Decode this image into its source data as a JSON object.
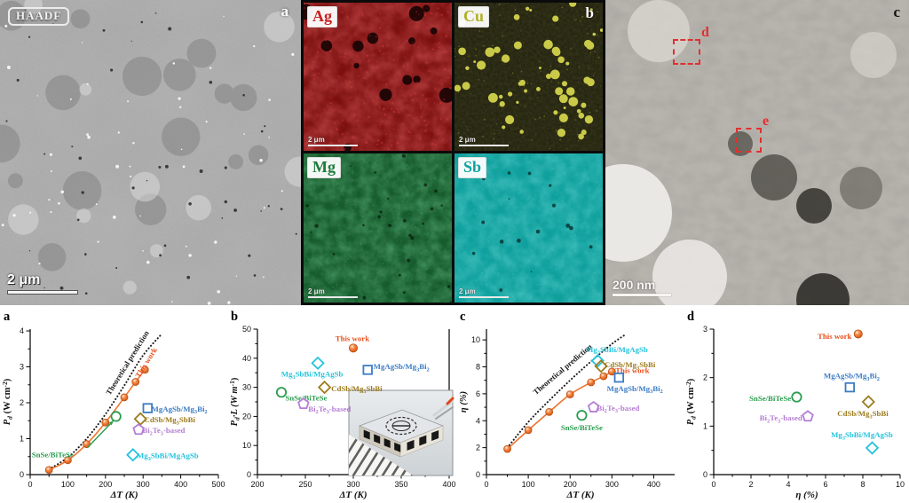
{
  "micrographs": {
    "haadf": {
      "technique_label": "HAADF",
      "panel_letter": "a",
      "scale_bar": "2 μm"
    },
    "eds_maps": [
      {
        "element": "Ag",
        "color": "#c42222",
        "scale_bar": "2 μm"
      },
      {
        "element": "Cu",
        "color": "#b0b02a",
        "scale_bar": "2 μm",
        "panel_letter": "b"
      },
      {
        "element": "Mg",
        "color": "#1e7c3e",
        "scale_bar": "2 μm"
      },
      {
        "element": "Sb",
        "color": "#12a3a0",
        "scale_bar": "2 μm"
      }
    ],
    "tem": {
      "panel_letter": "c",
      "scale_bar": "200 nm",
      "roi_boxes": [
        {
          "label": "d"
        },
        {
          "label": "e"
        }
      ]
    }
  },
  "chart_data": [
    {
      "panel_letter": "a",
      "type": "line",
      "xlabel": "ΔT (K)",
      "ylabel": "P_d (W cm^-2)",
      "xlim": [
        0,
        500
      ],
      "ylim": [
        0,
        4.05
      ],
      "xticks": [
        0,
        100,
        200,
        300,
        400,
        500
      ],
      "yticks": [
        0,
        1,
        2,
        3,
        4
      ],
      "series": [
        {
          "name": "Theoretical prediction",
          "color": "#1a1a1a",
          "style": "dotted",
          "x": [
            50,
            100,
            150,
            200,
            250,
            300,
            350
          ],
          "y": [
            0.15,
            0.48,
            1.0,
            1.68,
            2.48,
            3.32,
            3.92
          ],
          "label": {
            "x": 212,
            "y": 2.2,
            "rotate": -58,
            "anchor": "start"
          }
        },
        {
          "name": "This work",
          "color": "#f0742f",
          "text_color": "#e84f1d",
          "style": "line-markers",
          "x": [
            50,
            100,
            150,
            200,
            250,
            280,
            305
          ],
          "y": [
            0.13,
            0.4,
            0.85,
            1.45,
            2.15,
            2.58,
            2.92
          ],
          "label": {
            "x": 290,
            "y": 2.68,
            "rotate": -58,
            "anchor": "start"
          }
        }
      ],
      "points": [
        {
          "name": "MgAgSb/Mg_3Bi_2",
          "marker": "square",
          "color": "#3b7cc4",
          "x": 312,
          "y": 1.85,
          "label": {
            "x": 322,
            "y": 1.83,
            "anchor": "start"
          }
        },
        {
          "name": "CdSb/Mg_3SbBi",
          "marker": "diamond",
          "color": "#9c7b1d",
          "x": 293,
          "y": 1.55,
          "label": {
            "x": 303,
            "y": 1.53,
            "anchor": "start"
          }
        },
        {
          "name": "Bi_2Te_3-based",
          "marker": "pentagon",
          "color": "#b57dd5",
          "x": 288,
          "y": 1.25,
          "label": {
            "x": 298,
            "y": 1.23,
            "anchor": "start"
          }
        },
        {
          "name": "SnSe/BiTeSe",
          "marker": "circle",
          "color": "#2a9d4e",
          "x": 228,
          "y": 1.62,
          "label": {
            "x": 4,
            "y": 0.56,
            "anchor": "start"
          }
        },
        {
          "name": "Mg_3SbBi/MgAgSb",
          "marker": "diamond",
          "color": "#25c3dc",
          "x": 273,
          "y": 0.55,
          "label": {
            "x": 283,
            "y": 0.53,
            "anchor": "start"
          }
        }
      ],
      "arrows": [
        {
          "x1": 152,
          "y1": 0.75,
          "x2": 221,
          "y2": 1.5,
          "color": "#2a9d4e"
        }
      ]
    },
    {
      "panel_letter": "b",
      "type": "scatter",
      "xlabel": "ΔT (K)",
      "ylabel": "P_d·L (W m^-1)",
      "xlim": [
        200,
        400
      ],
      "ylim": [
        0,
        50
      ],
      "xticks": [
        200,
        250,
        300,
        350,
        400
      ],
      "yticks": [
        0,
        10,
        20,
        30,
        40,
        50
      ],
      "right_spine": true,
      "inset_photo": "thermoelectric-module-photo",
      "points": [
        {
          "name": "This work",
          "marker": "ball",
          "color": "#f0742f",
          "text_color": "#e84f1d",
          "x": 300,
          "y": 43.5,
          "label": {
            "x": 299,
            "y": 46.8,
            "anchor": "middle"
          }
        },
        {
          "name": "Mg_3SbBi/MgAgSb",
          "marker": "diamond",
          "color": "#25c3dc",
          "x": 263,
          "y": 38.3,
          "label": {
            "x": 257,
            "y": 34.6,
            "anchor": "middle"
          }
        },
        {
          "name": "MgAgSb/Mg_3Bi_2",
          "marker": "square",
          "color": "#3b7cc4",
          "x": 315,
          "y": 36,
          "label": {
            "x": 321,
            "y": 37.2,
            "anchor": "start"
          }
        },
        {
          "name": "CdSb/Mg_3SbBi",
          "marker": "diamond",
          "color": "#9c7b1d",
          "x": 270,
          "y": 30,
          "label": {
            "x": 277,
            "y": 29.6,
            "anchor": "start"
          }
        },
        {
          "name": "SnSe/BiTeSe",
          "marker": "circle",
          "color": "#2a9d4e",
          "x": 225,
          "y": 28.3,
          "label": {
            "x": 229,
            "y": 26.4,
            "anchor": "start"
          }
        },
        {
          "name": "Bi_2Te_3-based",
          "marker": "pentagon",
          "color": "#b57dd5",
          "x": 248,
          "y": 24.3,
          "label": {
            "x": 253,
            "y": 22.6,
            "anchor": "start"
          }
        }
      ]
    },
    {
      "panel_letter": "c",
      "type": "line",
      "xlabel": "ΔT (K)",
      "ylabel": "η (%)",
      "xlim": [
        0,
        450
      ],
      "ylim": [
        0,
        10.8
      ],
      "xticks": [
        0,
        100,
        200,
        300,
        400
      ],
      "yticks": [
        0,
        2,
        4,
        6,
        8,
        10
      ],
      "series": [
        {
          "name": "Theoretical prediction",
          "color": "#1a1a1a",
          "style": "dotted",
          "x": [
            50,
            100,
            150,
            200,
            250,
            300,
            330
          ],
          "y": [
            2.0,
            3.9,
            5.5,
            7.0,
            8.4,
            9.7,
            10.35
          ],
          "label": {
            "x": 118,
            "y": 5.9,
            "rotate": -40,
            "anchor": "start"
          }
        },
        {
          "name": "This work",
          "color": "#f0742f",
          "text_color": "#e84f1d",
          "style": "line-markers",
          "x": [
            50,
            100,
            150,
            200,
            250,
            280,
            300
          ],
          "y": [
            1.9,
            3.3,
            4.65,
            5.95,
            6.85,
            7.3,
            7.65
          ],
          "label": {
            "x": 308,
            "y": 7.55,
            "rotate": 0,
            "anchor": "start"
          }
        }
      ],
      "points": [
        {
          "name": "Mg_3SbBi/MgAgSb",
          "marker": "diamond",
          "color": "#25c3dc",
          "x": 266,
          "y": 8.45,
          "label": {
            "x": 238,
            "y": 9.3,
            "anchor": "start"
          }
        },
        {
          "name": "CdSb/Mg_3SbBi",
          "marker": "diamond",
          "color": "#9c7b1d",
          "x": 274,
          "y": 8.05,
          "label": {
            "x": 282,
            "y": 8.15,
            "anchor": "start"
          }
        },
        {
          "name": "MgAgSb/Mg_3Bi_2",
          "marker": "square",
          "color": "#3b7cc4",
          "x": 317,
          "y": 7.2,
          "label": {
            "x": 288,
            "y": 6.4,
            "anchor": "start"
          }
        },
        {
          "name": "Bi_2Te_3-based",
          "marker": "pentagon",
          "color": "#b57dd5",
          "x": 256,
          "y": 5.0,
          "label": {
            "x": 264,
            "y": 4.95,
            "anchor": "start"
          }
        },
        {
          "name": "SnSe/BiTeSe",
          "marker": "circle",
          "color": "#2a9d4e",
          "x": 228,
          "y": 4.4,
          "label": {
            "x": 228,
            "y": 3.5,
            "anchor": "middle"
          }
        }
      ]
    },
    {
      "panel_letter": "d",
      "type": "scatter",
      "xlabel": "η (%)",
      "ylabel": "P_d (W cm^-2)",
      "xlim": [
        0,
        10
      ],
      "ylim": [
        0,
        3
      ],
      "xticks": [
        0,
        2,
        4,
        6,
        8,
        10
      ],
      "yticks": [
        0,
        1,
        2,
        3
      ],
      "points": [
        {
          "name": "This work",
          "marker": "ball",
          "color": "#f0742f",
          "text_color": "#e84f1d",
          "x": 7.75,
          "y": 2.9,
          "label": {
            "x": 7.4,
            "y": 2.85,
            "anchor": "end"
          }
        },
        {
          "name": "MgAgSb/Mg_3Bi_2",
          "marker": "square",
          "color": "#3b7cc4",
          "x": 7.3,
          "y": 1.8,
          "label": {
            "x": 5.9,
            "y": 2.04,
            "anchor": "start"
          }
        },
        {
          "name": "CdSb/Mg_3SbBi",
          "marker": "diamond",
          "color": "#9c7b1d",
          "x": 8.3,
          "y": 1.5,
          "label": {
            "x": 8.0,
            "y": 1.26,
            "anchor": "middle"
          }
        },
        {
          "name": "SnSe/BiTeSe",
          "marker": "circle",
          "color": "#2a9d4e",
          "x": 4.45,
          "y": 1.6,
          "label": {
            "x": 4.15,
            "y": 1.57,
            "anchor": "end"
          }
        },
        {
          "name": "Bi_2Te_3-based",
          "marker": "pentagon",
          "color": "#b57dd5",
          "x": 5.05,
          "y": 1.2,
          "label": {
            "x": 4.75,
            "y": 1.17,
            "anchor": "end"
          }
        },
        {
          "name": "Mg_3SbBi/MgAgSb",
          "marker": "diamond",
          "color": "#25c3dc",
          "x": 8.5,
          "y": 0.55,
          "label": {
            "x": 7.95,
            "y": 0.82,
            "anchor": "middle"
          }
        }
      ]
    }
  ]
}
